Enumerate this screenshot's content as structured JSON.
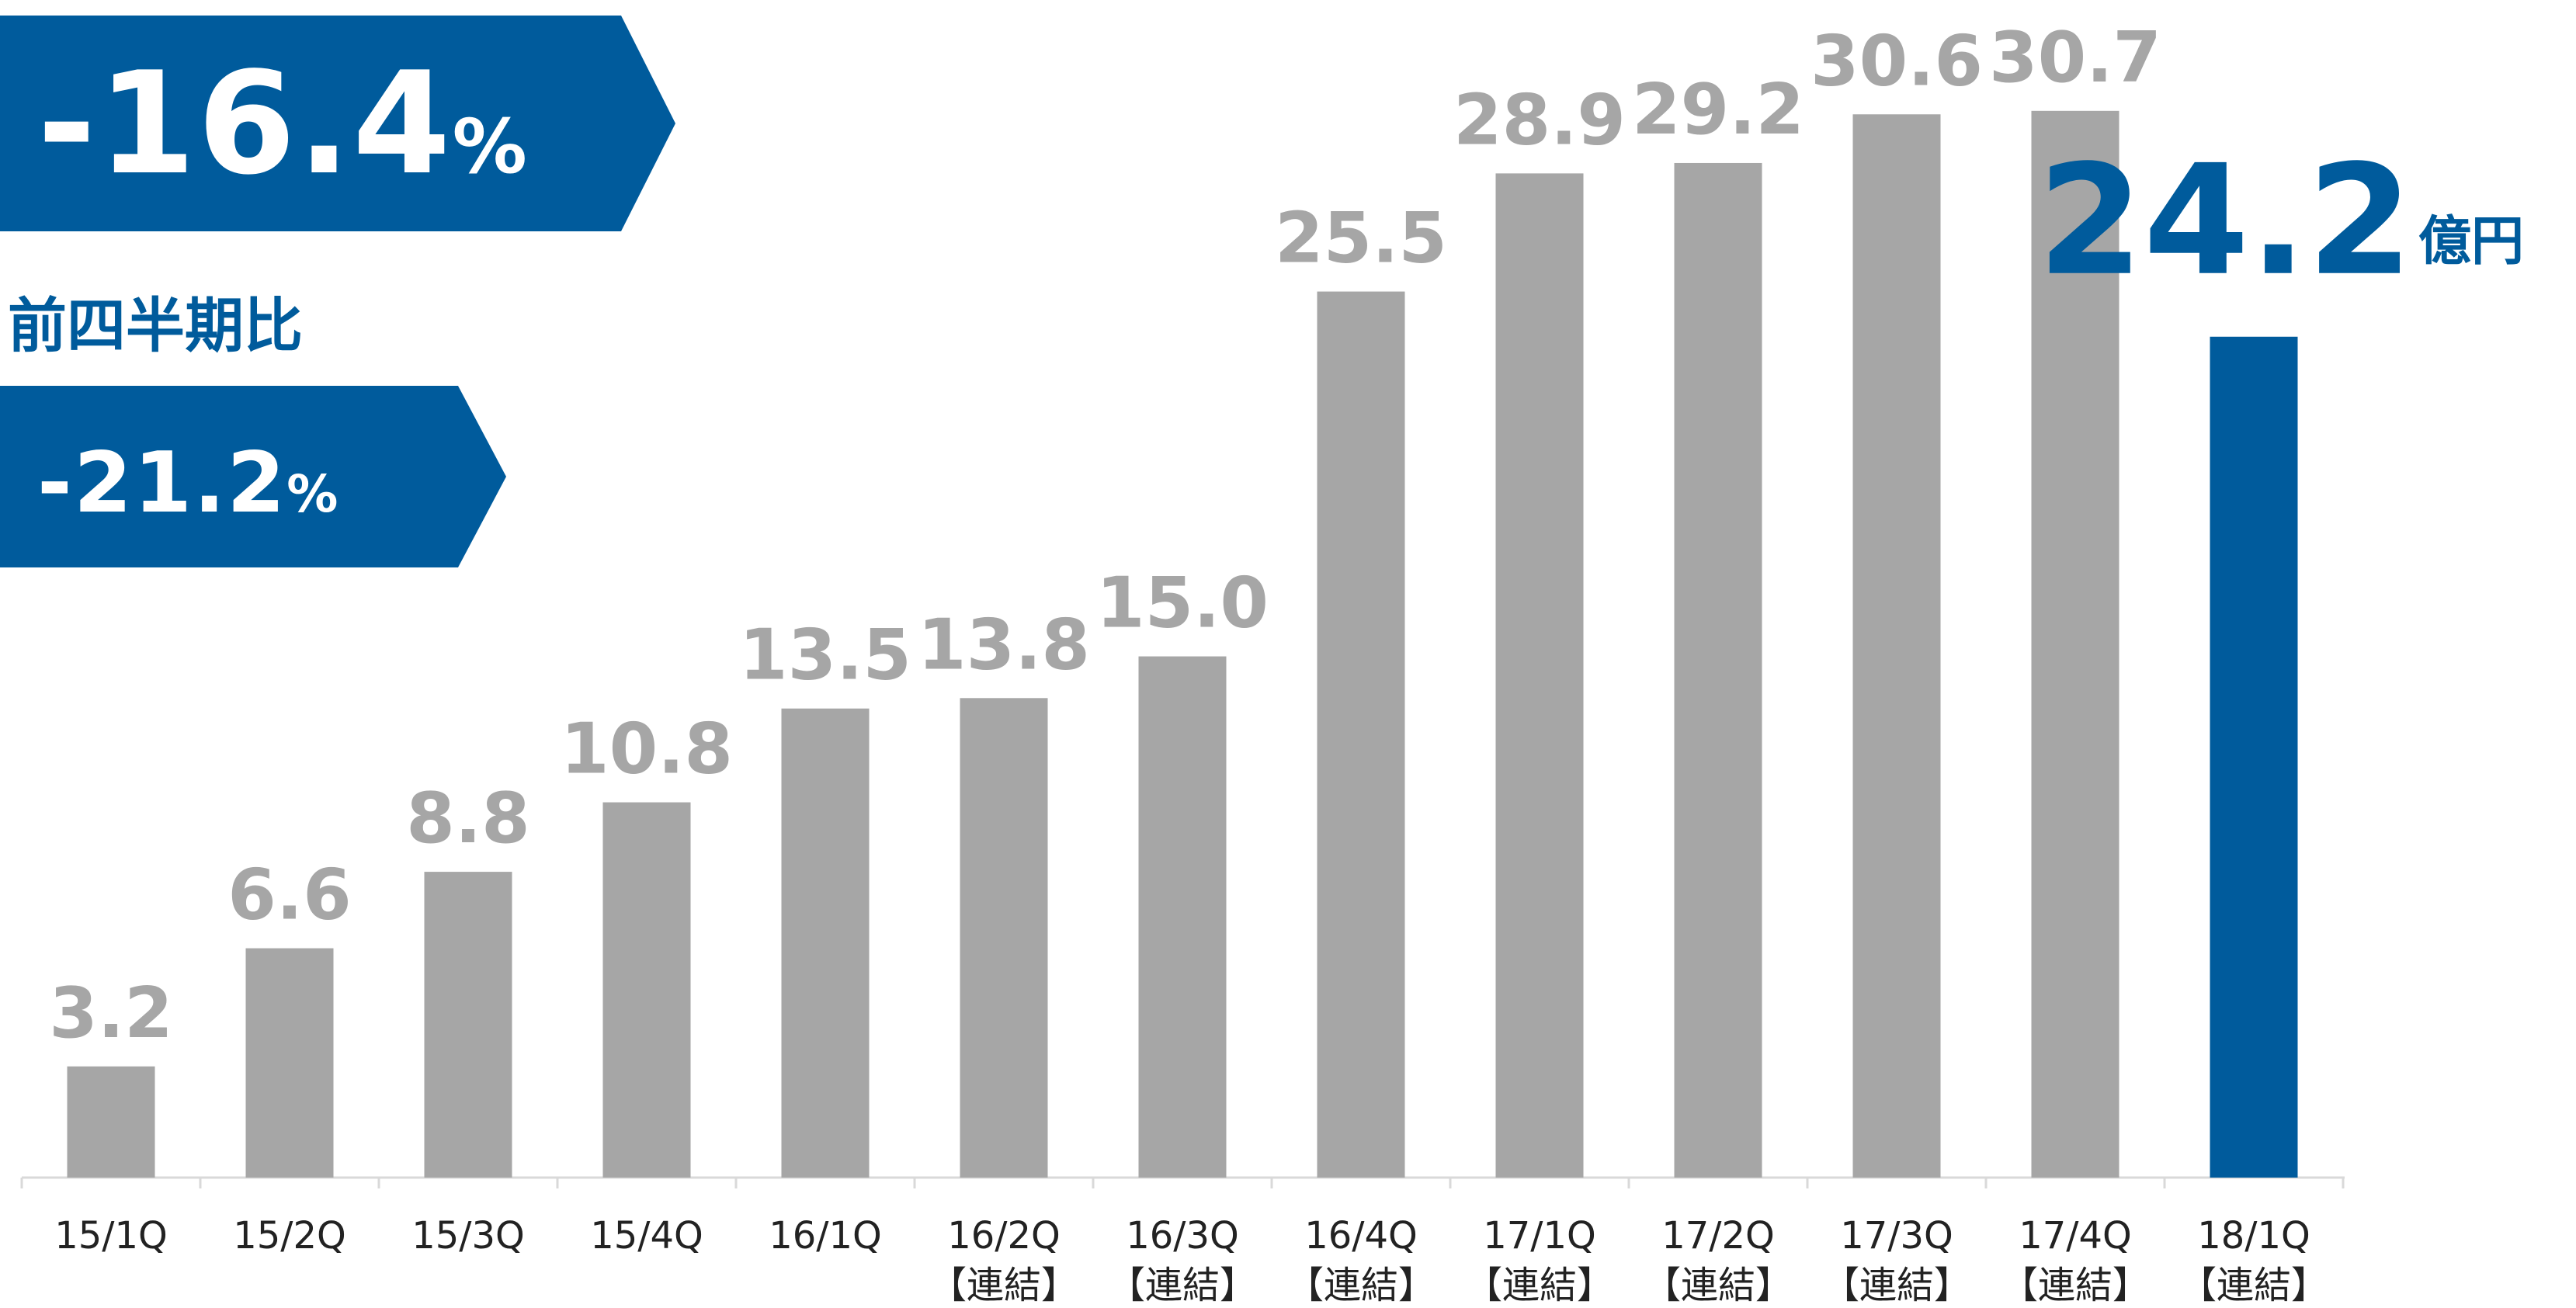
{
  "banners": [
    {
      "value": "-16.4",
      "unit": "%"
    },
    {
      "value": "-21.2",
      "unit": "%"
    }
  ],
  "comparison_label": "前四半期比",
  "colors": {
    "bar": "#a6a6a6",
    "highlight": "#005b9c",
    "value_label": "#a6a6a6",
    "axis": "#d9d9d9",
    "tick_label": "#222222"
  },
  "chart_data": {
    "type": "bar",
    "categories": [
      {
        "line1": "15/1Q",
        "line2": ""
      },
      {
        "line1": "15/2Q",
        "line2": ""
      },
      {
        "line1": "15/3Q",
        "line2": ""
      },
      {
        "line1": "15/4Q",
        "line2": ""
      },
      {
        "line1": "16/1Q",
        "line2": ""
      },
      {
        "line1": "16/2Q",
        "line2": "【連結】"
      },
      {
        "line1": "16/3Q",
        "line2": "【連結】"
      },
      {
        "line1": "16/4Q",
        "line2": "【連結】"
      },
      {
        "line1": "17/1Q",
        "line2": "【連結】"
      },
      {
        "line1": "17/2Q",
        "line2": "【連結】"
      },
      {
        "line1": "17/3Q",
        "line2": "【連結】"
      },
      {
        "line1": "17/4Q",
        "line2": "【連結】"
      },
      {
        "line1": "18/1Q",
        "line2": "【連結】"
      }
    ],
    "values": [
      3.2,
      6.6,
      8.8,
      10.8,
      13.5,
      13.8,
      15.0,
      25.5,
      28.9,
      29.2,
      30.6,
      30.7,
      24.2
    ],
    "value_labels": [
      "3.2",
      "6.6",
      "8.8",
      "10.8",
      "13.5",
      "13.8",
      "15.0",
      "25.5",
      "28.9",
      "29.2",
      "30.6",
      "30.7",
      "24.2"
    ],
    "highlight_index": 12,
    "highlight_unit": "億円",
    "ylim": [
      0,
      31.5
    ],
    "grid": false
  }
}
